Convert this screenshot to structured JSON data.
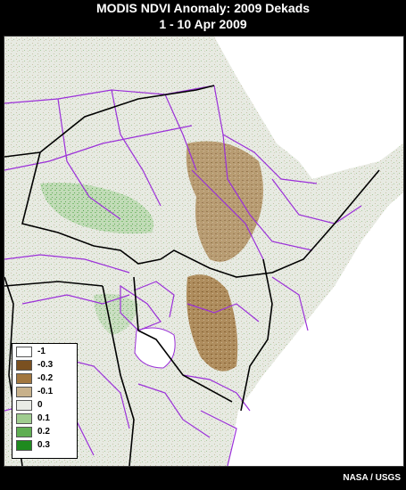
{
  "header": {
    "title": "MODIS NDVI Anomaly: 2009 Dekads",
    "subtitle": "1 - 10 Apr 2009"
  },
  "legend": {
    "items": [
      {
        "label": "-1",
        "color": "#ffffff"
      },
      {
        "label": "-0.3",
        "color": "#7a5020"
      },
      {
        "label": "-0.2",
        "color": "#a2773f"
      },
      {
        "label": "-0.1",
        "color": "#c8b18b"
      },
      {
        "label": "0",
        "color": "#e9ebe5"
      },
      {
        "label": "0.1",
        "color": "#9fcc8f"
      },
      {
        "label": "0.2",
        "color": "#5fae52"
      },
      {
        "label": "0.3",
        "color": "#1f8a1f"
      }
    ]
  },
  "credit": "NASA / USGS",
  "colors": {
    "background": "#000000",
    "land_base": "#ecefe9",
    "sea": "#ffffff",
    "admin_boundaries": "#9b30d9",
    "national_boundaries": "#000000"
  }
}
